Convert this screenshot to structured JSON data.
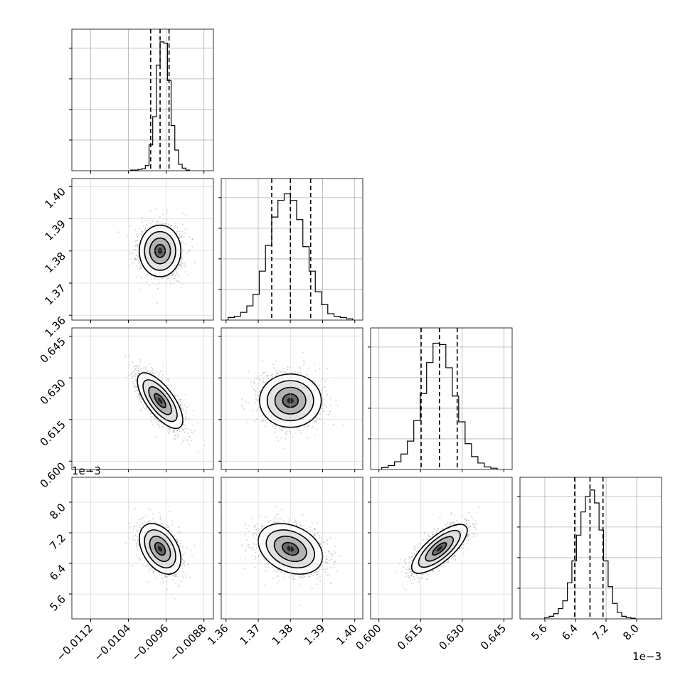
{
  "chart_data": {
    "type": "corner",
    "grid": true,
    "parameters": [
      {
        "id": "p0",
        "range": [
          -0.0116,
          -0.0086
        ],
        "ticks": [
          "-0.0112",
          "-0.0104",
          "-0.0096",
          "-0.0088"
        ],
        "tick_values": [
          -0.0112,
          -0.0104,
          -0.0096,
          -0.0088
        ],
        "quantiles": [
          -0.00993,
          -0.00973,
          -0.00954
        ],
        "offset_text": ""
      },
      {
        "id": "p1",
        "range": [
          1.3585,
          1.4025
        ],
        "ticks": [
          "1.36",
          "1.37",
          "1.38",
          "1.39",
          "1.40"
        ],
        "tick_values": [
          1.36,
          1.37,
          1.38,
          1.39,
          1.4
        ],
        "quantiles": [
          1.3742,
          1.38,
          1.3863
        ],
        "offset_text": ""
      },
      {
        "id": "p2",
        "range": [
          0.597,
          0.648
        ],
        "ticks": [
          "0.600",
          "0.615",
          "0.630",
          "0.645"
        ],
        "tick_values": [
          0.6,
          0.615,
          0.63,
          0.645
        ],
        "quantiles": [
          0.6152,
          0.6218,
          0.6282
        ],
        "offset_text": ""
      },
      {
        "id": "p3",
        "range": [
          4.95,
          8.65
        ],
        "ticks": [
          "5.6",
          "6.4",
          "7.2",
          "8.0"
        ],
        "tick_values": [
          5.6,
          6.4,
          7.2,
          8.0
        ],
        "quantiles": [
          6.38,
          6.78,
          7.12
        ],
        "offset_text": "1e−3"
      }
    ],
    "histograms": [
      [
        0.005,
        0.005,
        0.01,
        0.015,
        0.04,
        0.2,
        0.42,
        0.82,
        1.0,
        0.99,
        0.7,
        0.35,
        0.16,
        0.05,
        0.02,
        0.005
      ],
      [
        0.02,
        0.03,
        0.06,
        0.11,
        0.2,
        0.38,
        0.58,
        0.8,
        0.93,
        0.98,
        0.93,
        0.78,
        0.57,
        0.38,
        0.22,
        0.12,
        0.05,
        0.03,
        0.02,
        0.01
      ],
      [
        0.015,
        0.03,
        0.06,
        0.12,
        0.22,
        0.38,
        0.59,
        0.83,
        0.98,
        0.97,
        0.79,
        0.57,
        0.37,
        0.2,
        0.1,
        0.05,
        0.02,
        0.01
      ],
      [
        0.01,
        0.02,
        0.04,
        0.08,
        0.14,
        0.28,
        0.45,
        0.65,
        0.83,
        0.95,
        1.0,
        0.9,
        0.69,
        0.45,
        0.25,
        0.12,
        0.05,
        0.02,
        0.01,
        0.005
      ]
    ],
    "pairs": [
      {
        "x": 0,
        "y": 1,
        "mean": [
          -0.00973,
          1.38
        ],
        "sd": [
          0.00022,
          0.004
        ],
        "corr": 0.0
      },
      {
        "x": 0,
        "y": 2,
        "mean": [
          -0.00973,
          0.6218
        ],
        "sd": [
          0.00024,
          0.005
        ],
        "corr": -0.7
      },
      {
        "x": 1,
        "y": 2,
        "mean": [
          1.38,
          0.6218
        ],
        "sd": [
          0.0048,
          0.0048
        ],
        "corr": 0.0
      },
      {
        "x": 0,
        "y": 3,
        "mean": [
          -0.00973,
          6.78
        ],
        "sd": [
          0.00022,
          0.33
        ],
        "corr": -0.4
      },
      {
        "x": 1,
        "y": 3,
        "mean": [
          1.38,
          6.78
        ],
        "sd": [
          0.005,
          0.33
        ],
        "corr": -0.3
      },
      {
        "x": 2,
        "y": 3,
        "mean": [
          0.6218,
          6.78
        ],
        "sd": [
          0.005,
          0.32
        ],
        "corr": 0.75
      }
    ],
    "contour_levels_sigma": [
      0.5,
      1.0,
      1.5,
      2.0
    ]
  },
  "colors": {
    "line": "#000000",
    "grid": "#b0b0b0",
    "scatter": "#9a9a9a",
    "background": "#ffffff"
  }
}
